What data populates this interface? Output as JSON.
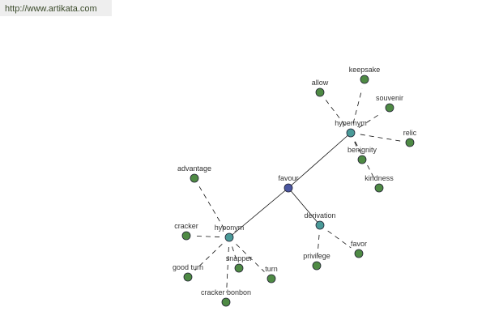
{
  "header": {
    "site_link": "http://www.artikata.com"
  },
  "colors": {
    "root": "#4a56a0",
    "relation": "#4a9a98",
    "leaf": "#4e8a44",
    "link_bg": "#eeeeee"
  },
  "graph": {
    "nodes": [
      {
        "id": "favour",
        "label": "favour",
        "type": "root"
      },
      {
        "id": "hypernym",
        "label": "hypernym",
        "type": "relation"
      },
      {
        "id": "hyponym",
        "label": "hyponym",
        "type": "relation"
      },
      {
        "id": "derivation",
        "label": "derivation",
        "type": "relation"
      },
      {
        "id": "allow",
        "label": "allow",
        "type": "leaf"
      },
      {
        "id": "keepsake",
        "label": "keepsake",
        "type": "leaf"
      },
      {
        "id": "souvenir",
        "label": "souvenir",
        "type": "leaf"
      },
      {
        "id": "relic",
        "label": "relic",
        "type": "leaf"
      },
      {
        "id": "benignity",
        "label": "benignity",
        "type": "leaf"
      },
      {
        "id": "kindness",
        "label": "kindness",
        "type": "leaf"
      },
      {
        "id": "advantage",
        "label": "advantage",
        "type": "leaf"
      },
      {
        "id": "cracker",
        "label": "cracker",
        "type": "leaf"
      },
      {
        "id": "good-turn",
        "label": "good turn",
        "type": "leaf"
      },
      {
        "id": "snapper",
        "label": "snapper",
        "type": "leaf"
      },
      {
        "id": "turn",
        "label": "turn",
        "type": "leaf"
      },
      {
        "id": "cracker-bonbon",
        "label": "cracker bonbon",
        "type": "leaf"
      },
      {
        "id": "privilege",
        "label": "privilege",
        "type": "leaf"
      },
      {
        "id": "favor",
        "label": "favor",
        "type": "leaf"
      }
    ],
    "edges": [
      [
        "favour",
        "hypernym",
        "solid"
      ],
      [
        "favour",
        "hyponym",
        "solid"
      ],
      [
        "favour",
        "derivation",
        "solid"
      ],
      [
        "hypernym",
        "allow",
        "dashed"
      ],
      [
        "hypernym",
        "keepsake",
        "dashed"
      ],
      [
        "hypernym",
        "souvenir",
        "dashed"
      ],
      [
        "hypernym",
        "relic",
        "dashed"
      ],
      [
        "hypernym",
        "benignity",
        "dashed"
      ],
      [
        "hypernym",
        "kindness",
        "dashed"
      ],
      [
        "hyponym",
        "advantage",
        "dashed"
      ],
      [
        "hyponym",
        "cracker",
        "dashed"
      ],
      [
        "hyponym",
        "good-turn",
        "dashed"
      ],
      [
        "hyponym",
        "snapper",
        "dashed"
      ],
      [
        "hyponym",
        "turn",
        "dashed"
      ],
      [
        "hyponym",
        "cracker-bonbon",
        "dashed"
      ],
      [
        "derivation",
        "privilege",
        "dashed"
      ],
      [
        "derivation",
        "favor",
        "dashed"
      ]
    ]
  }
}
